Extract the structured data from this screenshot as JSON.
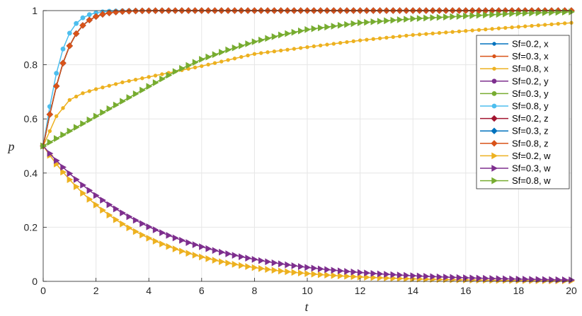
{
  "chart_data": {
    "type": "line",
    "xlabel": "t",
    "ylabel": "p",
    "xlim": [
      0,
      20
    ],
    "ylim": [
      0,
      1
    ],
    "x_ticks": [
      "0",
      "2",
      "4",
      "6",
      "8",
      "10",
      "12",
      "14",
      "16",
      "18",
      "20"
    ],
    "y_ticks": [
      "0",
      "0.2",
      "0.4",
      "0.6",
      "0.8",
      "1"
    ],
    "grid": true,
    "legend_position": "top-right",
    "x_step": 0.25,
    "series": [
      {
        "name": "Sf=0.2, x",
        "color": "#0072bd",
        "marker": "dot",
        "model": "sat",
        "k": 1.9
      },
      {
        "name": "Sf=0.3, x",
        "color": "#d95319",
        "marker": "dot",
        "model": "sat",
        "k": 1.9
      },
      {
        "name": "Sf=0.8, x",
        "color": "#edb120",
        "marker": "dot",
        "model": "knee",
        "points": [
          [
            0,
            0.5
          ],
          [
            0.5,
            0.61
          ],
          [
            1,
            0.67
          ],
          [
            1.5,
            0.695
          ],
          [
            2,
            0.71
          ],
          [
            3,
            0.735
          ],
          [
            4,
            0.755
          ],
          [
            5,
            0.775
          ],
          [
            6,
            0.795
          ],
          [
            8,
            0.84
          ],
          [
            10,
            0.865
          ],
          [
            12,
            0.89
          ],
          [
            14,
            0.91
          ],
          [
            16,
            0.925
          ],
          [
            18,
            0.94
          ],
          [
            20,
            0.955
          ]
        ]
      },
      {
        "name": "Sf=0.2, y",
        "color": "#7e2f8e",
        "marker": "circle",
        "model": "sat",
        "k": 1.9
      },
      {
        "name": "Sf=0.3, y",
        "color": "#77ac30",
        "marker": "circle",
        "model": "sat",
        "k": 1.9
      },
      {
        "name": "Sf=0.8, y",
        "color": "#4dbeee",
        "marker": "circle",
        "model": "sat",
        "k": 2.4
      },
      {
        "name": "Sf=0.2, z",
        "color": "#a2142f",
        "marker": "diamond",
        "model": "sat",
        "k": 1.9
      },
      {
        "name": "Sf=0.3, z",
        "color": "#0072bd",
        "marker": "diamond",
        "model": "sat",
        "k": 1.9
      },
      {
        "name": "Sf=0.8, z",
        "color": "#d95319",
        "marker": "diamond",
        "model": "sat",
        "k": 1.9
      },
      {
        "name": "Sf=0.2, w",
        "color": "#edb120",
        "marker": "triangle",
        "model": "exp",
        "tau": 3.5
      },
      {
        "name": "Sf=0.3, w",
        "color": "#7e2f8e",
        "marker": "triangle",
        "model": "exp",
        "tau": 4.4
      },
      {
        "name": "Sf=0.8, w",
        "color": "#77ac30",
        "marker": "triangle",
        "model": "rise",
        "points": [
          [
            0,
            0.5
          ],
          [
            1,
            0.555
          ],
          [
            2,
            0.61
          ],
          [
            3,
            0.665
          ],
          [
            4,
            0.72
          ],
          [
            5,
            0.775
          ],
          [
            6,
            0.82
          ],
          [
            7,
            0.855
          ],
          [
            8,
            0.885
          ],
          [
            9,
            0.91
          ],
          [
            10,
            0.93
          ],
          [
            12,
            0.955
          ],
          [
            14,
            0.97
          ],
          [
            16,
            0.98
          ],
          [
            18,
            0.99
          ],
          [
            20,
            0.995
          ]
        ]
      }
    ]
  }
}
